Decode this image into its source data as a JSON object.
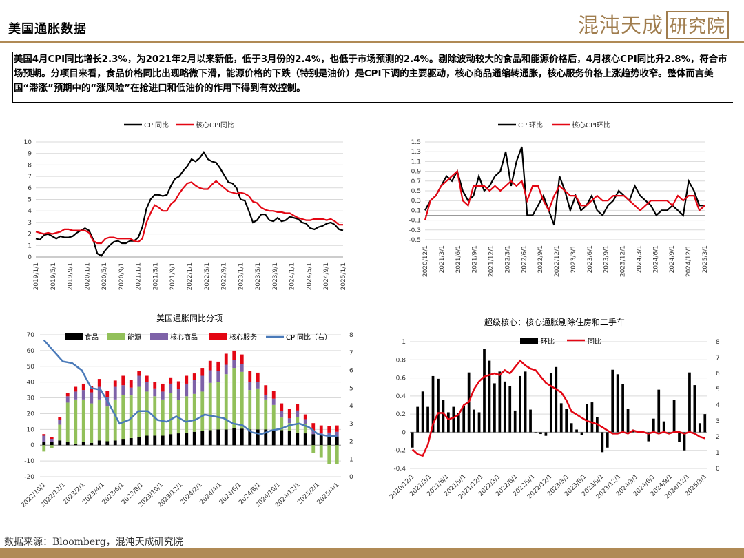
{
  "header": {
    "title": "美国通胀数据",
    "logo": "混沌天成",
    "logo_box": "研究院"
  },
  "summary": "美国4月CPI同比增长2.3%，为2021年2月以来新低，低于3月份的2.4%，也低于市场预测的2.4%。剔除波动较大的食品和能源价格后，4月核心CPI同比升2.8%，符合市场预期。分项目来看，食品价格同比出现略微下滑，能源价格的下跌（特别是油价）是CPI下调的主要驱动，核心商品通缩转通胀，核心服务价格上涨趋势收窄。整体而言美国“滞涨”预期中的“涨风险”在抢进口和低油价的作用下得到有效控制。",
  "footer": "数据来源：Bloomberg，混沌天成研究院",
  "colors": {
    "black": "#000000",
    "red": "#e30613",
    "green": "#92c05a",
    "purple": "#7e62a8",
    "blue": "#4a7ab9",
    "gold": "#b08a55"
  },
  "chart_data": [
    {
      "type": "line",
      "legend": [
        "CPI同比",
        "核心CPI同比"
      ],
      "ylim": [
        0,
        10
      ],
      "yticks": [
        "0",
        "1",
        "2",
        "3",
        "4",
        "5",
        "6",
        "7",
        "8",
        "9",
        "10"
      ],
      "xticks": [
        "2019/1/1",
        "2019/5/1",
        "2019/9/1",
        "2020/1/1",
        "2020/5/1",
        "2020/9/1",
        "2021/1/1",
        "2021/5/1",
        "2021/9/1",
        "2022/1/1",
        "2022/5/1",
        "2022/9/1",
        "2023/1/1",
        "2023/5/1",
        "2023/9/1",
        "2024/1/1",
        "2024/5/1",
        "2024/9/1",
        "2025/1/1"
      ],
      "series": [
        {
          "name": "CPI同比",
          "color": "#000000",
          "values": [
            1.6,
            1.5,
            1.9,
            2.0,
            1.8,
            1.6,
            1.8,
            1.7,
            1.7,
            1.8,
            2.1,
            2.3,
            2.5,
            2.3,
            1.5,
            0.3,
            0.1,
            0.6,
            1.0,
            1.3,
            1.4,
            1.2,
            1.2,
            1.4,
            1.4,
            1.7,
            2.6,
            4.2,
            5.0,
            5.4,
            5.4,
            5.3,
            5.4,
            6.2,
            6.8,
            7.0,
            7.5,
            7.9,
            8.5,
            8.3,
            8.6,
            9.1,
            8.5,
            8.3,
            8.2,
            7.7,
            7.1,
            6.5,
            6.4,
            6.0,
            5.0,
            4.9,
            4.0,
            3.0,
            3.2,
            3.7,
            3.7,
            3.2,
            3.1,
            3.4,
            3.1,
            3.2,
            3.5,
            3.4,
            3.3,
            3.0,
            2.9,
            2.5,
            2.4,
            2.6,
            2.7,
            2.9,
            3.0,
            2.8,
            2.4,
            2.3
          ]
        },
        {
          "name": "核心CPI同比",
          "color": "#e30613",
          "values": [
            2.2,
            2.1,
            2.0,
            2.1,
            2.0,
            2.1,
            2.2,
            2.4,
            2.4,
            2.3,
            2.3,
            2.3,
            2.3,
            2.1,
            1.4,
            1.2,
            1.2,
            1.6,
            1.7,
            1.7,
            1.6,
            1.6,
            1.6,
            1.6,
            1.4,
            1.3,
            1.6,
            3.0,
            3.8,
            4.5,
            4.3,
            4.0,
            4.0,
            4.6,
            4.9,
            5.5,
            6.0,
            6.4,
            6.5,
            6.2,
            6.0,
            5.9,
            5.9,
            6.3,
            6.6,
            6.3,
            6.0,
            5.7,
            5.6,
            5.5,
            5.6,
            5.5,
            5.3,
            4.8,
            4.7,
            4.3,
            4.1,
            4.0,
            4.0,
            3.9,
            3.9,
            3.8,
            3.8,
            3.6,
            3.4,
            3.3,
            3.2,
            3.2,
            3.3,
            3.3,
            3.3,
            3.2,
            3.3,
            3.1,
            2.8,
            2.8
          ]
        }
      ]
    },
    {
      "type": "line",
      "legend": [
        "CPI环比",
        "核心CPI环比"
      ],
      "ylim": [
        -0.5,
        1.5
      ],
      "yticks": [
        "-0.5",
        "-0.3",
        "-0.1",
        "0.1",
        "0.3",
        "0.5",
        "0.7",
        "0.9",
        "1.1",
        "1.3",
        "1.5"
      ],
      "xticks": [
        "2020/12/1",
        "2021/3/1",
        "2021/6/1",
        "2021/9/1",
        "2021/12/1",
        "2022/3/1",
        "2022/6/1",
        "2022/9/1",
        "2022/12/1",
        "2023/3/1",
        "2023/6/1",
        "2023/9/1",
        "2023/12/1",
        "2024/3/1",
        "2024/6/1",
        "2024/9/1",
        "2024/12/1",
        "2025/3/1"
      ],
      "series": [
        {
          "name": "CPI环比",
          "color": "#000000",
          "values": [
            0.1,
            0.3,
            0.4,
            0.6,
            0.8,
            0.7,
            0.9,
            0.5,
            0.3,
            0.4,
            0.8,
            0.5,
            0.6,
            0.8,
            0.9,
            1.3,
            0.6,
            1.1,
            1.4,
            0.0,
            0.0,
            0.2,
            0.4,
            0.1,
            -0.2,
            0.8,
            0.5,
            0.1,
            0.4,
            0.1,
            0.2,
            0.4,
            0.1,
            0.0,
            0.2,
            0.3,
            0.5,
            0.4,
            0.3,
            0.6,
            0.4,
            0.3,
            0.2,
            0.0,
            0.1,
            0.1,
            0.2,
            0.1,
            0.0,
            0.7,
            0.5,
            0.2,
            0.2
          ]
        },
        {
          "name": "核心CPI环比",
          "color": "#e30613",
          "values": [
            -0.1,
            0.3,
            0.4,
            0.6,
            0.7,
            0.8,
            0.9,
            0.3,
            0.2,
            0.6,
            0.6,
            0.6,
            0.5,
            0.6,
            0.5,
            0.6,
            0.7,
            0.6,
            0.7,
            0.3,
            0.6,
            0.6,
            0.3,
            0.1,
            0.4,
            0.6,
            0.5,
            0.4,
            0.4,
            0.2,
            0.2,
            0.3,
            0.4,
            0.3,
            0.3,
            0.4,
            0.4,
            0.4,
            0.3,
            0.2,
            0.1,
            0.2,
            0.3,
            0.3,
            0.3,
            0.3,
            0.2,
            0.4,
            0.3,
            0.4,
            0.4,
            0.1,
            0.2
          ]
        }
      ]
    },
    {
      "type": "bar",
      "title": "美国通胀同比分项",
      "legend": [
        "食品",
        "能源",
        "核心商品",
        "核心服务",
        "CPI同比（右）"
      ],
      "ylim": [
        -20,
        70
      ],
      "y2lim": [
        0,
        8
      ],
      "yticks": [
        "-20",
        "-10",
        "0",
        "10",
        "20",
        "30",
        "40",
        "50",
        "60",
        "70"
      ],
      "y2ticks": [
        "0",
        "1",
        "2",
        "3",
        "4",
        "5",
        "6",
        "7",
        "8"
      ],
      "xticks": [
        "2022/10/1",
        "2022/12/1",
        "2023/2/1",
        "2023/4/1",
        "2023/6/1",
        "2023/8/1",
        "2023/10/1",
        "2023/12/1",
        "2024/2/1",
        "2024/4/1",
        "2024/6/1",
        "2024/8/1",
        "2024/10/1",
        "2024/12/1",
        "2025/2/1",
        "2025/4/1"
      ],
      "food": [
        2,
        2,
        3,
        2,
        1,
        2,
        1.5,
        3,
        2.5,
        3,
        4,
        4.5,
        5,
        6,
        6,
        6,
        7,
        7.5,
        8,
        8.5,
        9,
        9.5,
        10,
        10,
        11,
        10.5,
        10,
        10,
        10,
        9.5,
        9.5,
        9,
        8,
        7.5,
        7,
        6.5,
        6,
        5.5
      ],
      "energy": [
        -4,
        -2,
        10,
        25,
        28,
        27,
        25,
        26,
        22,
        26,
        28,
        27,
        32,
        28,
        25,
        23,
        26,
        21,
        23,
        24,
        25,
        30,
        30,
        35,
        38,
        36,
        25,
        26,
        19,
        16,
        8,
        5,
        10,
        6,
        -5,
        -8,
        -12,
        -12
      ],
      "core_goods": [
        4,
        2,
        3,
        4,
        5,
        6,
        7,
        8,
        6,
        8,
        6,
        5,
        7,
        6,
        5,
        5,
        6,
        7,
        8,
        9,
        10,
        8,
        7,
        6,
        5,
        5,
        5,
        4,
        3,
        4,
        4,
        3,
        4,
        3,
        2,
        1,
        2,
        3
      ],
      "core_services": [
        1,
        1,
        2,
        2,
        3,
        4,
        4,
        5,
        4,
        4,
        6,
        5,
        3,
        4,
        4,
        5,
        4,
        5,
        5,
        4,
        5,
        6,
        6,
        7,
        6,
        6,
        7,
        6,
        6,
        5,
        5,
        6,
        4,
        3,
        5,
        5,
        4,
        4
      ],
      "cpi_right": [
        7.7,
        7.1,
        6.5,
        6.4,
        6.0,
        5.0,
        4.9,
        4.0,
        3.0,
        3.2,
        3.7,
        3.7,
        3.2,
        3.1,
        3.4,
        3.1,
        3.2,
        3.5,
        3.4,
        3.3,
        3.0,
        2.9,
        2.5,
        2.4,
        2.6,
        2.7,
        2.9,
        3.0,
        2.8,
        2.4,
        2.3,
        2.3
      ]
    },
    {
      "type": "bar",
      "title": "超级核心：核心通胀剔除住房和二手车",
      "legend": [
        "环比",
        "同比"
      ],
      "ylim": [
        -0.4,
        1.0
      ],
      "y2lim": [
        0,
        8
      ],
      "yticks": [
        "-0.4",
        "-0.2",
        "0",
        "0.2",
        "0.4",
        "0.6",
        "0.8",
        "1"
      ],
      "y2ticks": [
        "0",
        "1",
        "2",
        "3",
        "4",
        "5",
        "6",
        "7",
        "8"
      ],
      "xticks": [
        "2020/12/1",
        "2021/3/1",
        "2021/6/1",
        "2021/9/1",
        "2021/12/1",
        "2022/3/1",
        "2022/6/1",
        "2022/9/1",
        "2022/12/1",
        "2023/3/1",
        "2023/6/1",
        "2023/9/1",
        "2023/12/1",
        "2024/3/1",
        "2024/6/1",
        "2024/9/1",
        "2024/12/1",
        "2025/3/1"
      ],
      "mom": [
        -0.17,
        0.28,
        0.45,
        0.28,
        0.62,
        0.59,
        0.36,
        0.22,
        0.28,
        0.21,
        0.29,
        0.66,
        0.25,
        0.22,
        0.92,
        0.79,
        0.54,
        0.67,
        0.56,
        0.51,
        0.24,
        0.62,
        0.67,
        0.25,
        0.0,
        -0.02,
        -0.04,
        0.65,
        0.72,
        0.32,
        0.26,
        0.1,
        0.03,
        -0.03,
        0.31,
        0.33,
        0.17,
        -0.22,
        -0.17,
        0.69,
        0.64,
        0.53,
        0.26,
        0.03,
        -0.01,
        0.0,
        -0.1,
        0.15,
        0.47,
        0.12,
        -0.02,
        0.36,
        -0.11,
        -0.2,
        0.66,
        0.52,
        0.1,
        0.2
      ],
      "yoy": [
        1.2,
        0.9,
        0.8,
        1.5,
        2.8,
        3.5,
        3.5,
        3.1,
        3.2,
        3.4,
        4.0,
        4.2,
        5.0,
        5.5,
        5.8,
        5.9,
        6.0,
        5.9,
        6.2,
        6.0,
        6.4,
        6.8,
        6.5,
        6.3,
        6.2,
        5.8,
        5.4,
        5.2,
        5.0,
        4.8,
        4.3,
        3.6,
        3.4,
        3.2,
        3.0,
        2.9,
        2.8,
        2.6,
        2.4,
        2.2,
        2.2,
        2.3,
        2.2,
        2.4,
        2.3,
        2.3,
        2.2,
        2.3,
        2.2,
        2.3,
        2.2,
        2.3,
        2.3,
        2.2,
        2.3,
        2.2,
        2.0,
        1.9
      ]
    }
  ]
}
